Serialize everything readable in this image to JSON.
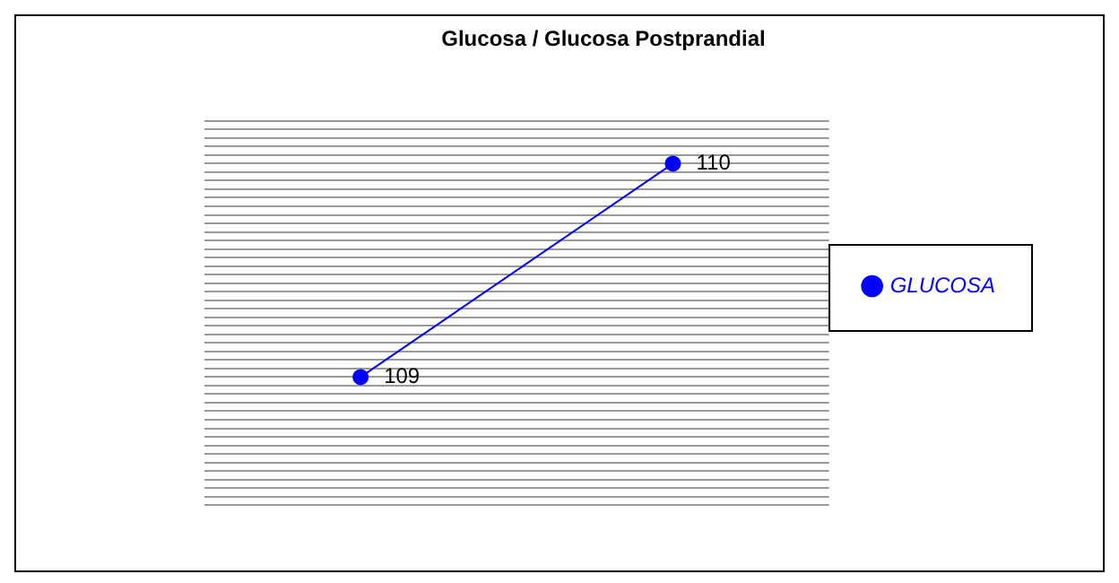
{
  "chart_data": {
    "type": "line",
    "title": "Glucosa / Glucosa Postprandial",
    "categories": [
      null,
      null
    ],
    "series": [
      {
        "name": "GLUCOSA",
        "color": "#0000ff",
        "values": [
          109,
          110
        ]
      }
    ],
    "ylim": [
      108.4,
      110.2
    ],
    "yticks": [
      {
        "value": 108.4,
        "label": null
      },
      {
        "value": 108.44,
        "label": null
      },
      {
        "value": 108.48,
        "label": null
      },
      {
        "value": 108.52,
        "label": null
      },
      {
        "value": 108.56,
        "label": null
      },
      {
        "value": 108.6,
        "label": null
      },
      {
        "value": 108.64,
        "label": null
      },
      {
        "value": 108.68,
        "label": null
      },
      {
        "value": 108.72,
        "label": null
      },
      {
        "value": 108.76,
        "label": null
      },
      {
        "value": 108.8,
        "label": null
      },
      {
        "value": 108.84,
        "label": null
      },
      {
        "value": 108.88,
        "label": null
      },
      {
        "value": 108.92,
        "label": null
      },
      {
        "value": 108.96,
        "label": null
      },
      {
        "value": 109,
        "label": null
      },
      {
        "value": 109.04,
        "label": null
      },
      {
        "value": 109.08,
        "label": null
      },
      {
        "value": 109.12,
        "label": null
      },
      {
        "value": 109.16,
        "label": null
      },
      {
        "value": 109.2,
        "label": null
      },
      {
        "value": 109.24,
        "label": null
      },
      {
        "value": 109.28,
        "label": null
      },
      {
        "value": 109.32,
        "label": null
      },
      {
        "value": 109.36,
        "label": null
      },
      {
        "value": 109.4,
        "label": null
      },
      {
        "value": 109.44,
        "label": null
      },
      {
        "value": 109.48,
        "label": null
      },
      {
        "value": 109.52,
        "label": null
      },
      {
        "value": 109.56,
        "label": null
      },
      {
        "value": 109.6,
        "label": null
      },
      {
        "value": 109.64,
        "label": null
      },
      {
        "value": 109.68,
        "label": null
      },
      {
        "value": 109.72,
        "label": null
      },
      {
        "value": 109.76,
        "label": null
      },
      {
        "value": 109.8,
        "label": null
      },
      {
        "value": 109.84,
        "label": null
      },
      {
        "value": 109.88,
        "label": null
      },
      {
        "value": 109.92,
        "label": null
      },
      {
        "value": 109.96,
        "label": null
      },
      {
        "value": 110,
        "label": null
      },
      {
        "value": 110.04,
        "label": null
      },
      {
        "value": 110.08,
        "label": null
      },
      {
        "value": 110.12,
        "label": null
      },
      {
        "value": 110.16,
        "label": null
      },
      {
        "value": 110.2,
        "label": null
      }
    ],
    "grid": "y",
    "legend": "right",
    "marker": "circle",
    "line_style": "solid",
    "data_labels": true
  }
}
